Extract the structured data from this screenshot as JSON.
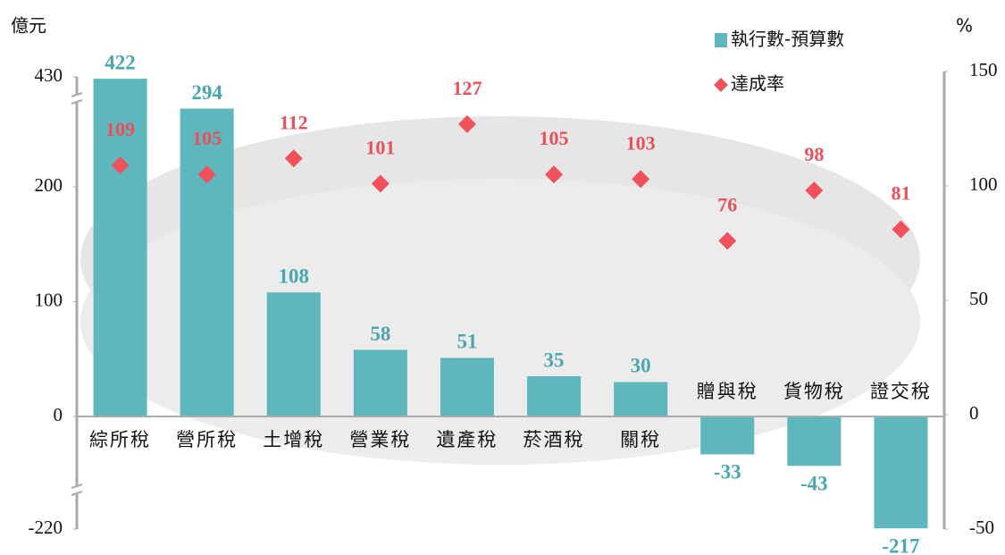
{
  "chart_data": {
    "type": "bar",
    "y_unit": "億元",
    "y2_unit": "%",
    "categories": [
      "綜所稅",
      "營所稅",
      "土增稅",
      "營業稅",
      "遺產稅",
      "菸酒稅",
      "關稅",
      "贈與稅",
      "貨物稅",
      "證交稅"
    ],
    "series": [
      {
        "name": "執行數-預算數",
        "type": "bar",
        "color": "#5db7bd",
        "values": [
          422,
          294,
          108,
          58,
          51,
          35,
          30,
          -33,
          -43,
          -217
        ]
      },
      {
        "name": "達成率",
        "type": "scatter",
        "axis": "y2",
        "color": "#f0515a",
        "values": [
          109,
          105,
          112,
          101,
          127,
          105,
          103,
          76,
          98,
          81
        ]
      }
    ],
    "ylim": [
      -220,
      430
    ],
    "yticks": [
      -220,
      0,
      100,
      200,
      430
    ],
    "axis_break": true,
    "y2lim": [
      -50,
      150
    ],
    "y2ticks": [
      -50,
      0,
      50,
      100,
      150
    ],
    "legend": "top-right"
  }
}
